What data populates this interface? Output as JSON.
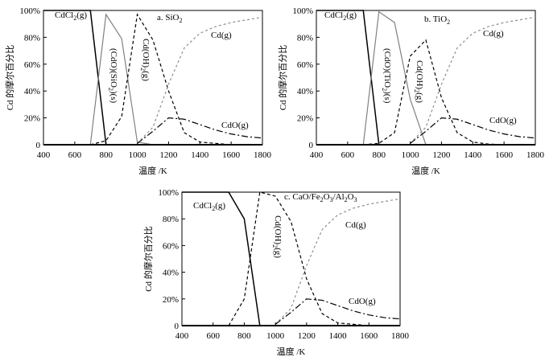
{
  "chart_data": [
    {
      "type": "line",
      "title": "a. SiO₂",
      "xlabel": "温度 /K",
      "ylabel": "Cd 的摩尔百分比",
      "xlim": [
        400,
        1800
      ],
      "ylim": [
        0,
        100
      ],
      "grid": false,
      "xticks": [
        "400",
        "600",
        "800",
        "1000",
        "1200",
        "1400",
        "1600",
        "1800"
      ],
      "yticks": [
        "0",
        "20%",
        "40%",
        "60%",
        "80%",
        "100%"
      ],
      "series": [
        {
          "name": "CdCl₂(g)",
          "style": "solid-black",
          "x": [
            400,
            500,
            600,
            700,
            800,
            900,
            1000,
            1800
          ],
          "y": [
            100,
            100,
            100,
            100,
            0,
            0,
            0,
            0
          ]
        },
        {
          "name": "(CdO)(SiO₂)(s)",
          "style": "solid-gray",
          "x": [
            400,
            700,
            800,
            900,
            1000,
            1100,
            1800
          ],
          "y": [
            0,
            0,
            97,
            79,
            2,
            0,
            0
          ]
        },
        {
          "name": "Cd(OH)₂(g)",
          "style": "dashed-black",
          "x": [
            700,
            800,
            900,
            1000,
            1100,
            1200,
            1300,
            1400,
            1500,
            1600,
            1800
          ],
          "y": [
            0,
            3,
            21,
            97,
            78,
            40,
            9,
            2,
            1,
            0,
            0
          ]
        },
        {
          "name": "Cd(g)",
          "style": "dashed-gray",
          "x": [
            1000,
            1100,
            1200,
            1300,
            1400,
            1500,
            1600,
            1700,
            1800
          ],
          "y": [
            1,
            13,
            45,
            72,
            83,
            88,
            91,
            93,
            95
          ]
        },
        {
          "name": "CdO(g)",
          "style": "dashdot-black",
          "x": [
            1000,
            1100,
            1200,
            1300,
            1400,
            1500,
            1600,
            1700,
            1800
          ],
          "y": [
            1,
            10,
            20,
            19,
            15,
            11,
            8,
            6,
            5
          ]
        }
      ]
    },
    {
      "type": "line",
      "title": "b. TiO₂",
      "xlabel": "温度 /K",
      "ylabel": "Cd 的摩尔百分比",
      "xlim": [
        400,
        1800
      ],
      "ylim": [
        0,
        100
      ],
      "grid": false,
      "xticks": [
        "400",
        "600",
        "800",
        "1000",
        "1200",
        "1400",
        "1600",
        "1800"
      ],
      "yticks": [
        "0",
        "20%",
        "40%",
        "60%",
        "80%",
        "100%"
      ],
      "series": [
        {
          "name": "CdCl₂(g)",
          "style": "solid-black",
          "x": [
            400,
            500,
            600,
            700,
            800,
            900,
            1000,
            1800
          ],
          "y": [
            100,
            100,
            100,
            100,
            0,
            0,
            0,
            0
          ]
        },
        {
          "name": "(CdO)(TiO₂)(s)",
          "style": "solid-gray",
          "x": [
            400,
            700,
            800,
            900,
            1000,
            1100,
            1800
          ],
          "y": [
            0,
            0,
            99,
            91,
            34,
            0,
            0
          ]
        },
        {
          "name": "Cd(OH)₂(g)",
          "style": "dashed-black",
          "x": [
            700,
            800,
            900,
            1000,
            1100,
            1200,
            1300,
            1400,
            1500,
            1600,
            1800
          ],
          "y": [
            0,
            1,
            9,
            66,
            78,
            35,
            9,
            2,
            0.5,
            0,
            0
          ]
        },
        {
          "name": "Cd(g)",
          "style": "dashed-gray",
          "x": [
            1000,
            1100,
            1200,
            1300,
            1400,
            1500,
            1600,
            1700,
            1800
          ],
          "y": [
            1,
            13,
            45,
            72,
            83,
            88,
            91,
            93,
            95
          ]
        },
        {
          "name": "CdO(g)",
          "style": "dashdot-black",
          "x": [
            1000,
            1100,
            1200,
            1300,
            1400,
            1500,
            1600,
            1700,
            1800
          ],
          "y": [
            1,
            10,
            20,
            19,
            15,
            11,
            8,
            6,
            5
          ]
        }
      ]
    },
    {
      "type": "line",
      "title": "c. CaO/Fe₂O₃/Al₂O₃",
      "xlabel": "温度 /K",
      "ylabel": "Cd 的摩尔百分比",
      "xlim": [
        400,
        1800
      ],
      "ylim": [
        0,
        100
      ],
      "grid": false,
      "xticks": [
        "400",
        "600",
        "800",
        "1000",
        "1200",
        "1400",
        "1600",
        "1800"
      ],
      "yticks": [
        "0",
        "20%",
        "40%",
        "60%",
        "80%",
        "100%"
      ],
      "series": [
        {
          "name": "CdCl₂(g)",
          "style": "solid-black",
          "x": [
            400,
            500,
            600,
            700,
            800,
            900,
            1000,
            1800
          ],
          "y": [
            100,
            100,
            100,
            100,
            80,
            0,
            0,
            0
          ]
        },
        {
          "name": "Cd(OH)₂(g)",
          "style": "dashed-black",
          "x": [
            700,
            800,
            900,
            1000,
            1100,
            1200,
            1300,
            1400,
            1500,
            1600,
            1800
          ],
          "y": [
            0,
            20,
            100,
            97,
            78,
            35,
            9,
            2,
            1,
            0,
            0
          ]
        },
        {
          "name": "Cd(g)",
          "style": "dashed-gray",
          "x": [
            1000,
            1100,
            1200,
            1300,
            1400,
            1500,
            1600,
            1700,
            1800
          ],
          "y": [
            1,
            13,
            45,
            72,
            83,
            88,
            91,
            93,
            95
          ]
        },
        {
          "name": "CdO(g)",
          "style": "dashdot-black",
          "x": [
            1000,
            1100,
            1200,
            1300,
            1400,
            1500,
            1600,
            1700,
            1800
          ],
          "y": [
            1,
            10,
            20,
            19,
            15,
            11,
            8,
            6,
            5
          ]
        }
      ]
    }
  ],
  "colors": {
    "black": "#000000",
    "gray": "#808080"
  }
}
